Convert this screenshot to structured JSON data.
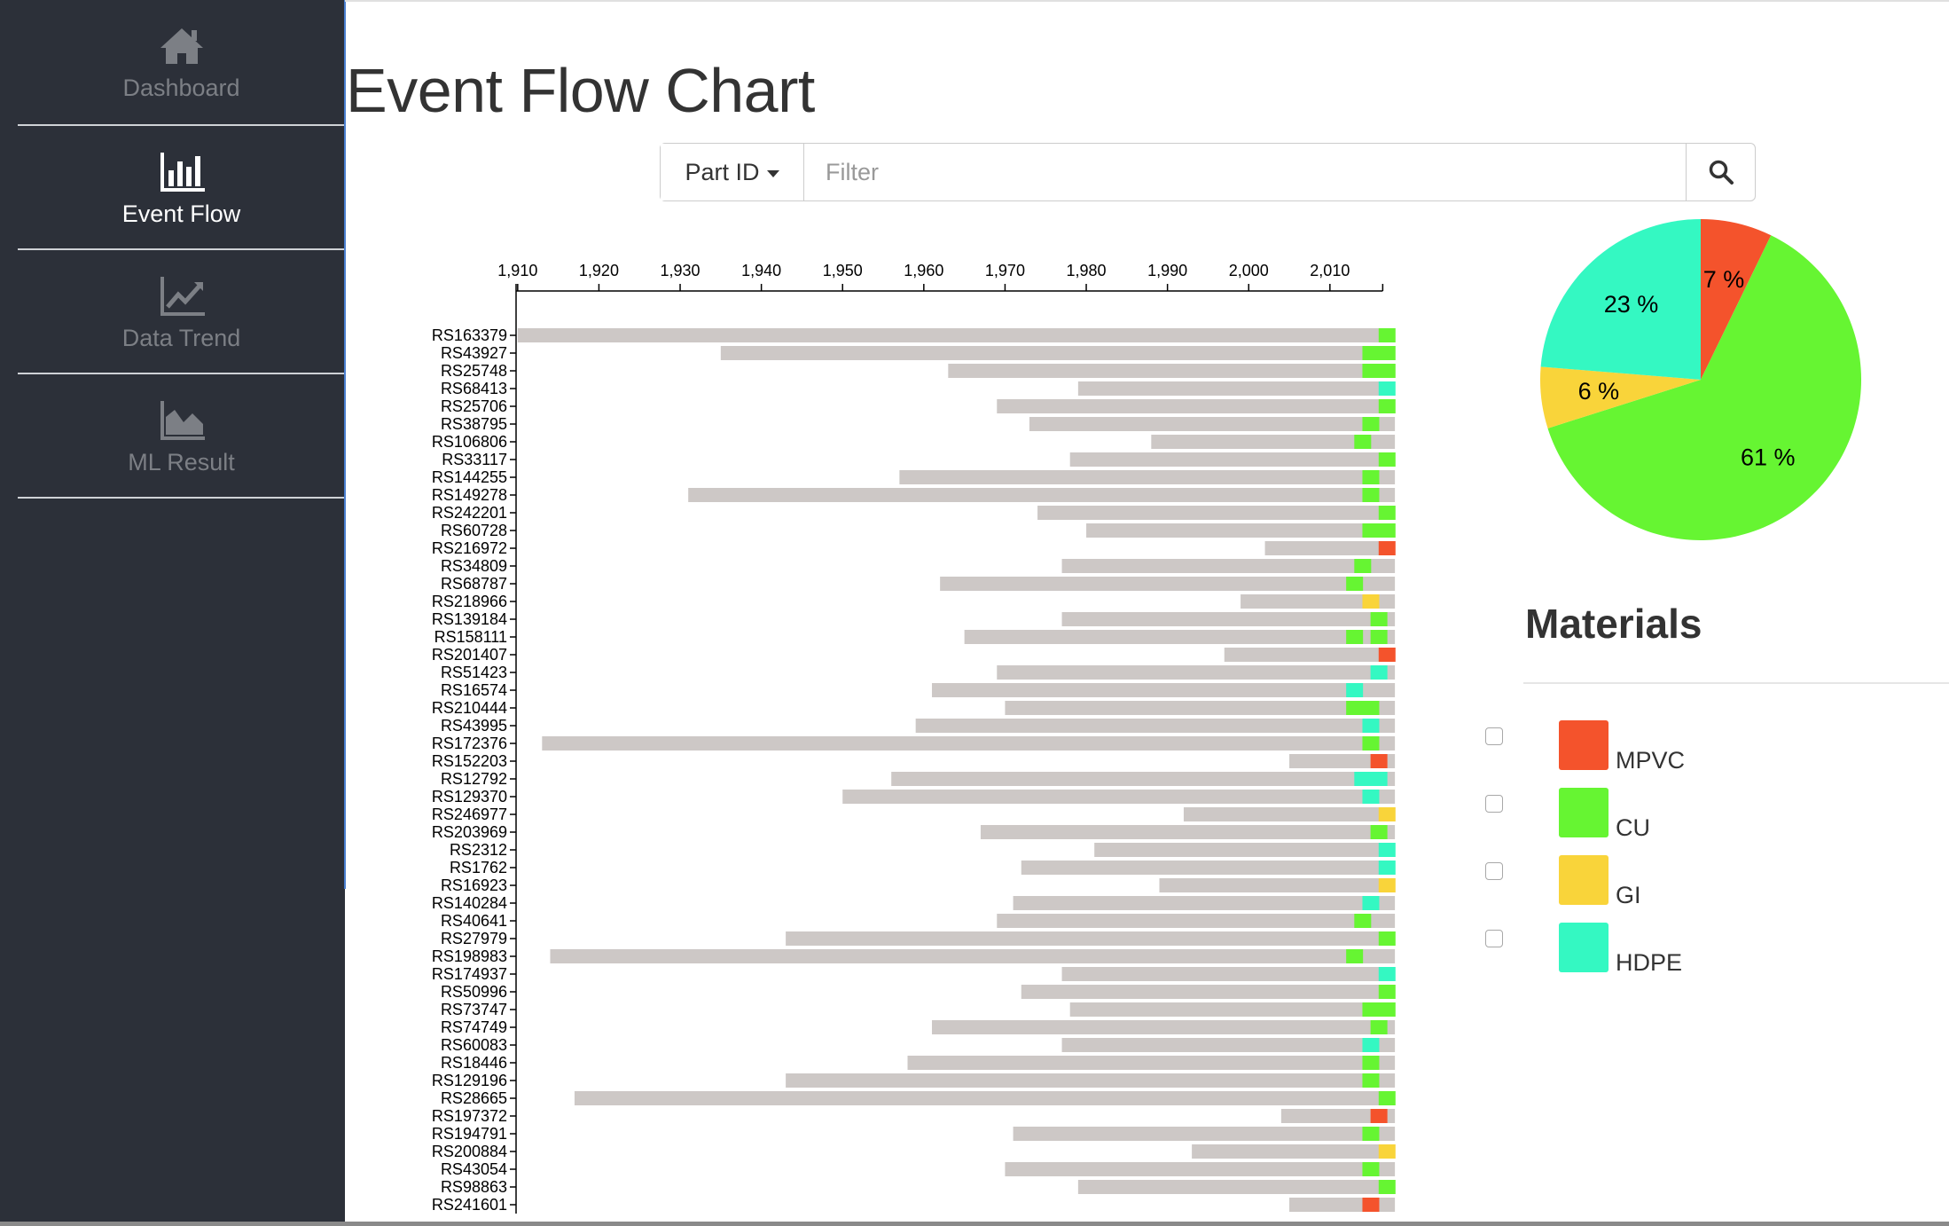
{
  "sidebar": {
    "items": [
      {
        "label": "Dashboard",
        "icon": "home-icon"
      },
      {
        "label": "Event Flow",
        "icon": "bar-chart-icon"
      },
      {
        "label": "Data Trend",
        "icon": "line-chart-icon"
      },
      {
        "label": "ML Result",
        "icon": "area-chart-icon"
      }
    ],
    "active": "Event Flow"
  },
  "page": {
    "title": "Event Flow Chart"
  },
  "search": {
    "dropdown_label": "Part ID",
    "placeholder": "Filter",
    "value": "",
    "button_icon": "search-icon"
  },
  "colors": {
    "MPVC": "#f4532c",
    "CU": "#66f532",
    "GI": "#f9d43a",
    "HDPE": "#34f8c2",
    "bar": "#cdc8c6",
    "sidebar_bg": "#2c3039"
  },
  "materials": {
    "title": "Materials",
    "items": [
      {
        "name": "MPVC",
        "checked": false
      },
      {
        "name": "CU",
        "checked": false
      },
      {
        "name": "GI",
        "checked": false
      },
      {
        "name": "HDPE",
        "checked": false
      }
    ]
  },
  "chart_data": [
    {
      "type": "bar",
      "subtype": "timeline",
      "xlim": [
        1910,
        2016
      ],
      "x_ticks": [
        "1,910",
        "1,920",
        "1,930",
        "1,940",
        "1,950",
        "1,960",
        "1,970",
        "1,980",
        "1,990",
        "2,000",
        "2,010"
      ],
      "x_axis_position": "top",
      "rows": [
        {
          "id": "RS163379",
          "start": 1910,
          "end": 2018,
          "events": [
            {
              "year": 2016,
              "material": "CU"
            }
          ]
        },
        {
          "id": "RS43927",
          "start": 1935,
          "end": 2018,
          "events": [
            {
              "year": 2014,
              "material": "CU"
            },
            {
              "year": 2016,
              "material": "CU"
            }
          ]
        },
        {
          "id": "RS25748",
          "start": 1963,
          "end": 2018,
          "events": [
            {
              "year": 2014,
              "material": "CU"
            },
            {
              "year": 2016,
              "material": "CU"
            }
          ]
        },
        {
          "id": "RS68413",
          "start": 1979,
          "end": 2018,
          "events": [
            {
              "year": 2016,
              "material": "HDPE"
            }
          ]
        },
        {
          "id": "RS25706",
          "start": 1969,
          "end": 2018,
          "events": [
            {
              "year": 2016,
              "material": "CU"
            }
          ]
        },
        {
          "id": "RS38795",
          "start": 1973,
          "end": 2018,
          "events": [
            {
              "year": 2014,
              "material": "CU"
            }
          ]
        },
        {
          "id": "RS106806",
          "start": 1988,
          "end": 2018,
          "events": [
            {
              "year": 2013,
              "material": "CU"
            }
          ]
        },
        {
          "id": "RS33117",
          "start": 1978,
          "end": 2018,
          "events": [
            {
              "year": 2016,
              "material": "CU"
            }
          ]
        },
        {
          "id": "RS144255",
          "start": 1957,
          "end": 2018,
          "events": [
            {
              "year": 2014,
              "material": "CU"
            }
          ]
        },
        {
          "id": "RS149278",
          "start": 1931,
          "end": 2018,
          "events": [
            {
              "year": 2014,
              "material": "CU"
            }
          ]
        },
        {
          "id": "RS242201",
          "start": 1974,
          "end": 2018,
          "events": [
            {
              "year": 2016,
              "material": "CU"
            }
          ]
        },
        {
          "id": "RS60728",
          "start": 1980,
          "end": 2018,
          "events": [
            {
              "year": 2014,
              "material": "CU"
            },
            {
              "year": 2016,
              "material": "CU"
            }
          ]
        },
        {
          "id": "RS216972",
          "start": 2002,
          "end": 2018,
          "events": [
            {
              "year": 2016,
              "material": "MPVC"
            }
          ]
        },
        {
          "id": "RS34809",
          "start": 1977,
          "end": 2018,
          "events": [
            {
              "year": 2013,
              "material": "CU"
            }
          ]
        },
        {
          "id": "RS68787",
          "start": 1962,
          "end": 2018,
          "events": [
            {
              "year": 2012,
              "material": "CU"
            }
          ]
        },
        {
          "id": "RS218966",
          "start": 1999,
          "end": 2018,
          "events": [
            {
              "year": 2014,
              "material": "GI"
            }
          ]
        },
        {
          "id": "RS139184",
          "start": 1977,
          "end": 2018,
          "events": [
            {
              "year": 2015,
              "material": "CU"
            }
          ]
        },
        {
          "id": "RS158111",
          "start": 1965,
          "end": 2018,
          "events": [
            {
              "year": 2012,
              "material": "CU"
            },
            {
              "year": 2015,
              "material": "CU"
            }
          ]
        },
        {
          "id": "RS201407",
          "start": 1997,
          "end": 2018,
          "events": [
            {
              "year": 2016,
              "material": "MPVC"
            }
          ]
        },
        {
          "id": "RS51423",
          "start": 1969,
          "end": 2018,
          "events": [
            {
              "year": 2015,
              "material": "HDPE"
            }
          ]
        },
        {
          "id": "RS16574",
          "start": 1961,
          "end": 2018,
          "events": [
            {
              "year": 2012,
              "material": "HDPE"
            }
          ]
        },
        {
          "id": "RS210444",
          "start": 1970,
          "end": 2018,
          "events": [
            {
              "year": 2012,
              "material": "CU"
            },
            {
              "year": 2014,
              "material": "CU"
            }
          ]
        },
        {
          "id": "RS43995",
          "start": 1959,
          "end": 2018,
          "events": [
            {
              "year": 2014,
              "material": "HDPE"
            }
          ]
        },
        {
          "id": "RS172376",
          "start": 1913,
          "end": 2018,
          "events": [
            {
              "year": 2014,
              "material": "CU"
            }
          ]
        },
        {
          "id": "RS152203",
          "start": 2005,
          "end": 2018,
          "events": [
            {
              "year": 2015,
              "material": "MPVC"
            }
          ]
        },
        {
          "id": "RS12792",
          "start": 1956,
          "end": 2018,
          "events": [
            {
              "year": 2013,
              "material": "HDPE"
            },
            {
              "year": 2015,
              "material": "HDPE"
            }
          ]
        },
        {
          "id": "RS129370",
          "start": 1950,
          "end": 2018,
          "events": [
            {
              "year": 2014,
              "material": "HDPE"
            }
          ]
        },
        {
          "id": "RS246977",
          "start": 1992,
          "end": 2018,
          "events": [
            {
              "year": 2016,
              "material": "GI"
            }
          ]
        },
        {
          "id": "RS203969",
          "start": 1967,
          "end": 2018,
          "events": [
            {
              "year": 2015,
              "material": "CU"
            }
          ]
        },
        {
          "id": "RS2312",
          "start": 1981,
          "end": 2018,
          "events": [
            {
              "year": 2016,
              "material": "HDPE"
            }
          ]
        },
        {
          "id": "RS1762",
          "start": 1972,
          "end": 2018,
          "events": [
            {
              "year": 2016,
              "material": "HDPE"
            }
          ]
        },
        {
          "id": "RS16923",
          "start": 1989,
          "end": 2018,
          "events": [
            {
              "year": 2016,
              "material": "GI"
            }
          ]
        },
        {
          "id": "RS140284",
          "start": 1971,
          "end": 2018,
          "events": [
            {
              "year": 2014,
              "material": "HDPE"
            }
          ]
        },
        {
          "id": "RS40641",
          "start": 1969,
          "end": 2018,
          "events": [
            {
              "year": 2013,
              "material": "CU"
            }
          ]
        },
        {
          "id": "RS27979",
          "start": 1943,
          "end": 2018,
          "events": [
            {
              "year": 2016,
              "material": "CU"
            }
          ]
        },
        {
          "id": "RS198983",
          "start": 1914,
          "end": 2018,
          "events": [
            {
              "year": 2012,
              "material": "CU"
            }
          ]
        },
        {
          "id": "RS174937",
          "start": 1977,
          "end": 2018,
          "events": [
            {
              "year": 2016,
              "material": "HDPE"
            }
          ]
        },
        {
          "id": "RS50996",
          "start": 1972,
          "end": 2018,
          "events": [
            {
              "year": 2016,
              "material": "CU"
            }
          ]
        },
        {
          "id": "RS73747",
          "start": 1978,
          "end": 2018,
          "events": [
            {
              "year": 2014,
              "material": "CU"
            },
            {
              "year": 2016,
              "material": "CU"
            }
          ]
        },
        {
          "id": "RS74749",
          "start": 1961,
          "end": 2018,
          "events": [
            {
              "year": 2015,
              "material": "CU"
            }
          ]
        },
        {
          "id": "RS60083",
          "start": 1977,
          "end": 2018,
          "events": [
            {
              "year": 2014,
              "material": "HDPE"
            }
          ]
        },
        {
          "id": "RS18446",
          "start": 1958,
          "end": 2018,
          "events": [
            {
              "year": 2014,
              "material": "CU"
            }
          ]
        },
        {
          "id": "RS129196",
          "start": 1943,
          "end": 2018,
          "events": [
            {
              "year": 2014,
              "material": "CU"
            }
          ]
        },
        {
          "id": "RS28665",
          "start": 1917,
          "end": 2018,
          "events": [
            {
              "year": 2016,
              "material": "CU"
            }
          ]
        },
        {
          "id": "RS197372",
          "start": 2004,
          "end": 2018,
          "events": [
            {
              "year": 2015,
              "material": "MPVC"
            }
          ]
        },
        {
          "id": "RS194791",
          "start": 1971,
          "end": 2018,
          "events": [
            {
              "year": 2014,
              "material": "CU"
            }
          ]
        },
        {
          "id": "RS200884",
          "start": 1993,
          "end": 2018,
          "events": [
            {
              "year": 2016,
              "material": "GI"
            }
          ]
        },
        {
          "id": "RS43054",
          "start": 1970,
          "end": 2018,
          "events": [
            {
              "year": 2014,
              "material": "CU"
            }
          ]
        },
        {
          "id": "RS98863",
          "start": 1979,
          "end": 2018,
          "events": [
            {
              "year": 2016,
              "material": "CU"
            }
          ]
        },
        {
          "id": "RS241601",
          "start": 2005,
          "end": 2018,
          "events": [
            {
              "year": 2014,
              "material": "MPVC"
            }
          ]
        }
      ]
    },
    {
      "type": "pie",
      "slices": [
        {
          "label": "MPVC",
          "value": 7,
          "text": "7 %"
        },
        {
          "label": "CU",
          "value": 61,
          "text": "61 %"
        },
        {
          "label": "GI",
          "value": 6,
          "text": "6 %"
        },
        {
          "label": "HDPE",
          "value": 23,
          "text": "23 %"
        }
      ]
    }
  ]
}
